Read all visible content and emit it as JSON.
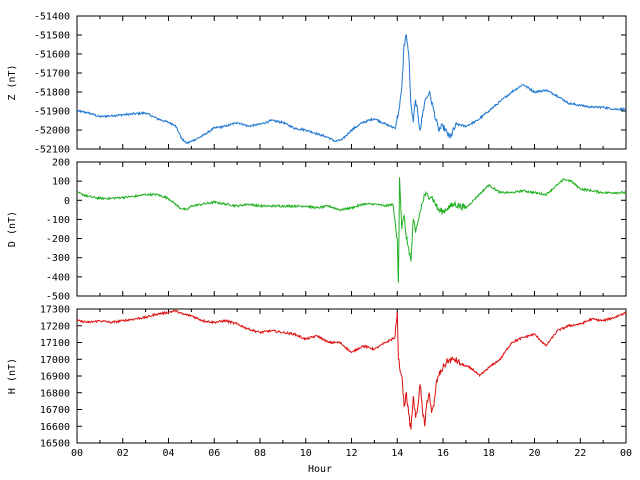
{
  "chart_data": {
    "type": "line",
    "xlabel": "Hour",
    "x_ticks": [
      "00",
      "02",
      "04",
      "06",
      "08",
      "10",
      "12",
      "14",
      "16",
      "18",
      "20",
      "22",
      "00"
    ],
    "xlim": [
      0,
      24
    ],
    "panels": [
      {
        "ylabel": "Z (nT)",
        "color": "#1f77d0",
        "ylim": [
          -52100,
          -51400
        ],
        "y_ticks": [
          -51400,
          -51500,
          -51600,
          -51700,
          -51800,
          -51900,
          -52000,
          -52100
        ],
        "series": [
          {
            "x": [
              0,
              0.5,
              1,
              1.5,
              2,
              2.5,
              3,
              3.5,
              4,
              4.3,
              4.6,
              4.8,
              5,
              5.5,
              6,
              6.5,
              7,
              7.5,
              8,
              8.5,
              9,
              9.5,
              10,
              10.5,
              11,
              11.3,
              11.6,
              12,
              12.5,
              13,
              13.5,
              13.9,
              14.1,
              14.2,
              14.3,
              14.4,
              14.5,
              14.6,
              14.7,
              14.8,
              15,
              15.2,
              15.4,
              15.6,
              15.8,
              16,
              16.3,
              16.6,
              17,
              17.5,
              18,
              18.5,
              19,
              19.5,
              20,
              20.5,
              21,
              21.5,
              22,
              22.5,
              23,
              23.5,
              24
            ],
            "y": [
              -51900,
              -51910,
              -51930,
              -51925,
              -51920,
              -51915,
              -51910,
              -51940,
              -51960,
              -51975,
              -52050,
              -52070,
              -52060,
              -52030,
              -51990,
              -51980,
              -51960,
              -51980,
              -51970,
              -51950,
              -51960,
              -51990,
              -52000,
              -52020,
              -52040,
              -52060,
              -52050,
              -52000,
              -51960,
              -51940,
              -51970,
              -51990,
              -51880,
              -51780,
              -51550,
              -51500,
              -51600,
              -51870,
              -51960,
              -51840,
              -52000,
              -51850,
              -51800,
              -51900,
              -52000,
              -51980,
              -52040,
              -51970,
              -51980,
              -51950,
              -51900,
              -51850,
              -51800,
              -51760,
              -51800,
              -51790,
              -51820,
              -51860,
              -51870,
              -51880,
              -51880,
              -51890,
              -51890
            ]
          }
        ]
      },
      {
        "ylabel": "D (nT)",
        "color": "#22b022",
        "ylim": [
          -500,
          200
        ],
        "y_ticks": [
          200,
          100,
          0,
          -100,
          -200,
          -300,
          -400,
          -500
        ],
        "series": [
          {
            "x": [
              0,
              0.5,
              1,
              1.5,
              2,
              2.5,
              3,
              3.5,
              4,
              4.3,
              4.5,
              4.8,
              5,
              5.5,
              6,
              6.5,
              7,
              7.5,
              8,
              8.5,
              9,
              9.5,
              10,
              10.5,
              11,
              11.5,
              12,
              12.5,
              13,
              13.5,
              13.8,
              14,
              14.05,
              14.1,
              14.2,
              14.3,
              14.4,
              14.5,
              14.6,
              14.7,
              14.8,
              15,
              15.2,
              15.5,
              15.8,
              16,
              16.2,
              16.5,
              17,
              17.5,
              18,
              18.5,
              19,
              19.5,
              20,
              20.5,
              21,
              21.3,
              21.6,
              22,
              22.5,
              23,
              23.5,
              24
            ],
            "y": [
              40,
              20,
              10,
              10,
              15,
              20,
              30,
              30,
              10,
              -20,
              -40,
              -50,
              -30,
              -20,
              -10,
              -20,
              -30,
              -20,
              -30,
              -30,
              -30,
              -30,
              -30,
              -40,
              -30,
              -50,
              -40,
              -20,
              -20,
              -30,
              -20,
              -200,
              -430,
              120,
              -150,
              -80,
              -200,
              -250,
              -320,
              -100,
              -170,
              -60,
              30,
              20,
              -50,
              -60,
              -40,
              -20,
              -40,
              20,
              80,
              40,
              40,
              50,
              40,
              30,
              80,
              110,
              100,
              60,
              50,
              40,
              40,
              40
            ]
          }
        ]
      },
      {
        "ylabel": "H (nT)",
        "color": "#dd1111",
        "ylim": [
          16500,
          17300
        ],
        "y_ticks": [
          17300,
          17200,
          17100,
          17000,
          16900,
          16800,
          16700,
          16600,
          16500
        ],
        "series": [
          {
            "x": [
              0,
              0.5,
              1,
              1.5,
              2,
              2.5,
              3,
              3.5,
              4,
              4.3,
              4.6,
              5,
              5.5,
              6,
              6.5,
              7,
              7.5,
              8,
              8.5,
              9,
              9.5,
              10,
              10.5,
              11,
              11.5,
              12,
              12.5,
              13,
              13.5,
              13.9,
              14,
              14.05,
              14.1,
              14.2,
              14.3,
              14.4,
              14.5,
              14.6,
              14.7,
              14.8,
              14.9,
              15,
              15.1,
              15.2,
              15.3,
              15.4,
              15.5,
              15.6,
              15.7,
              15.8,
              16,
              16.2,
              16.5,
              16.8,
              17,
              17.3,
              17.6,
              18,
              18.5,
              19,
              19.5,
              20,
              20.5,
              21,
              21.5,
              22,
              22.5,
              23,
              23.5,
              24
            ],
            "y": [
              17230,
              17220,
              17230,
              17220,
              17230,
              17240,
              17250,
              17270,
              17280,
              17290,
              17270,
              17260,
              17230,
              17220,
              17230,
              17210,
              17180,
              17160,
              17170,
              17160,
              17150,
              17120,
              17140,
              17100,
              17100,
              17040,
              17080,
              17060,
              17100,
              17130,
              17280,
              17000,
              16960,
              16900,
              16720,
              16800,
              16670,
              16580,
              16780,
              16650,
              16720,
              16850,
              16700,
              16600,
              16750,
              16800,
              16680,
              16720,
              16850,
              16900,
              16950,
              16990,
              17000,
              16970,
              16960,
              16940,
              16900,
              16950,
              17000,
              17100,
              17130,
              17150,
              17080,
              17170,
              17200,
              17210,
              17240,
              17230,
              17250,
              17280
            ]
          }
        ]
      }
    ]
  }
}
